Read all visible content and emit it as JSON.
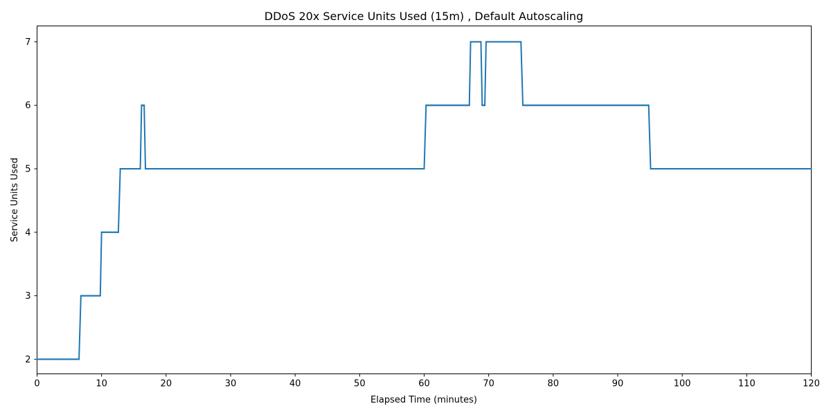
{
  "chart_data": {
    "type": "line",
    "title": "DDoS 20x Service Units Used (15m) , Default Autoscaling",
    "xlabel": "Elapsed Time (minutes)",
    "ylabel": "Service Units Used",
    "xlim": [
      0,
      120
    ],
    "ylim": [
      1.77,
      7.25
    ],
    "xticks": [
      0,
      10,
      20,
      30,
      40,
      50,
      60,
      70,
      80,
      90,
      100,
      110,
      120
    ],
    "yticks": [
      2,
      3,
      4,
      5,
      6,
      7
    ],
    "grid": false,
    "legend": "none",
    "series": [
      {
        "color": "#1f77b4",
        "x": [
          0,
          6.5,
          6.8,
          9.8,
          10.0,
          12.6,
          12.9,
          16.0,
          16.2,
          16.6,
          16.8,
          60.0,
          60.3,
          67.0,
          67.2,
          68.8,
          69.0,
          69.4,
          69.6,
          75.0,
          75.3,
          94.8,
          95.1,
          120
        ],
        "y": [
          2,
          2,
          3,
          3,
          4,
          4,
          5,
          5,
          6,
          6,
          5,
          5,
          6,
          6,
          7,
          7,
          6,
          6,
          7,
          7,
          6,
          6,
          5,
          5
        ]
      }
    ]
  }
}
